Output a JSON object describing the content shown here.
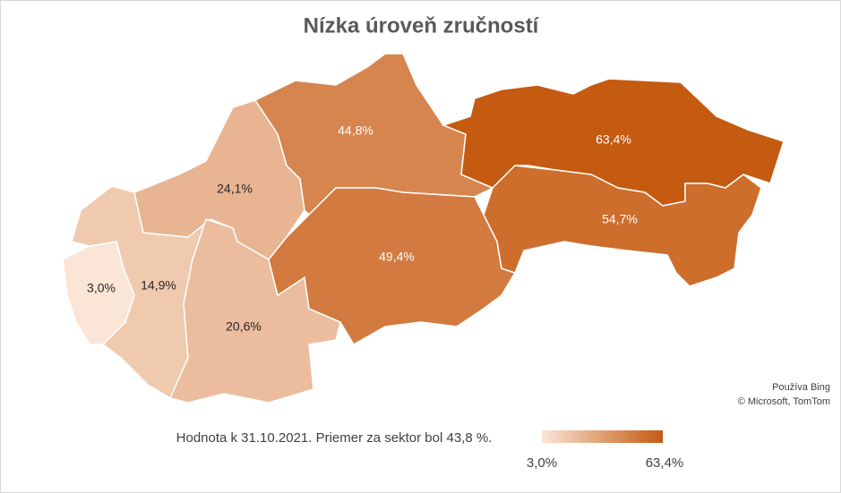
{
  "chart_data": {
    "type": "map",
    "title": "Nízka úroveň zručností",
    "categories": [
      null,
      null,
      null,
      null,
      null,
      null,
      null,
      null
    ],
    "values": [
      3.0,
      14.9,
      24.1,
      20.6,
      44.8,
      49.4,
      63.4,
      54.7
    ],
    "value_labels": [
      "3,0%",
      "14,9%",
      "24,1%",
      "20,6%",
      "44,8%",
      "49,4%",
      "63,4%",
      "54,7%"
    ],
    "color_scale": {
      "min": {
        "value": 3.0,
        "label": "3,0%",
        "color": "#fbe5d6"
      },
      "max": {
        "value": 63.4,
        "label": "63,4%",
        "color": "#c55a11"
      }
    },
    "footnote": "Hodnota k 31.10.2021. Priemer za sektor bol 43,8 %.",
    "attribution": [
      "Používa Bing",
      "© Microsoft, TomTom"
    ]
  }
}
